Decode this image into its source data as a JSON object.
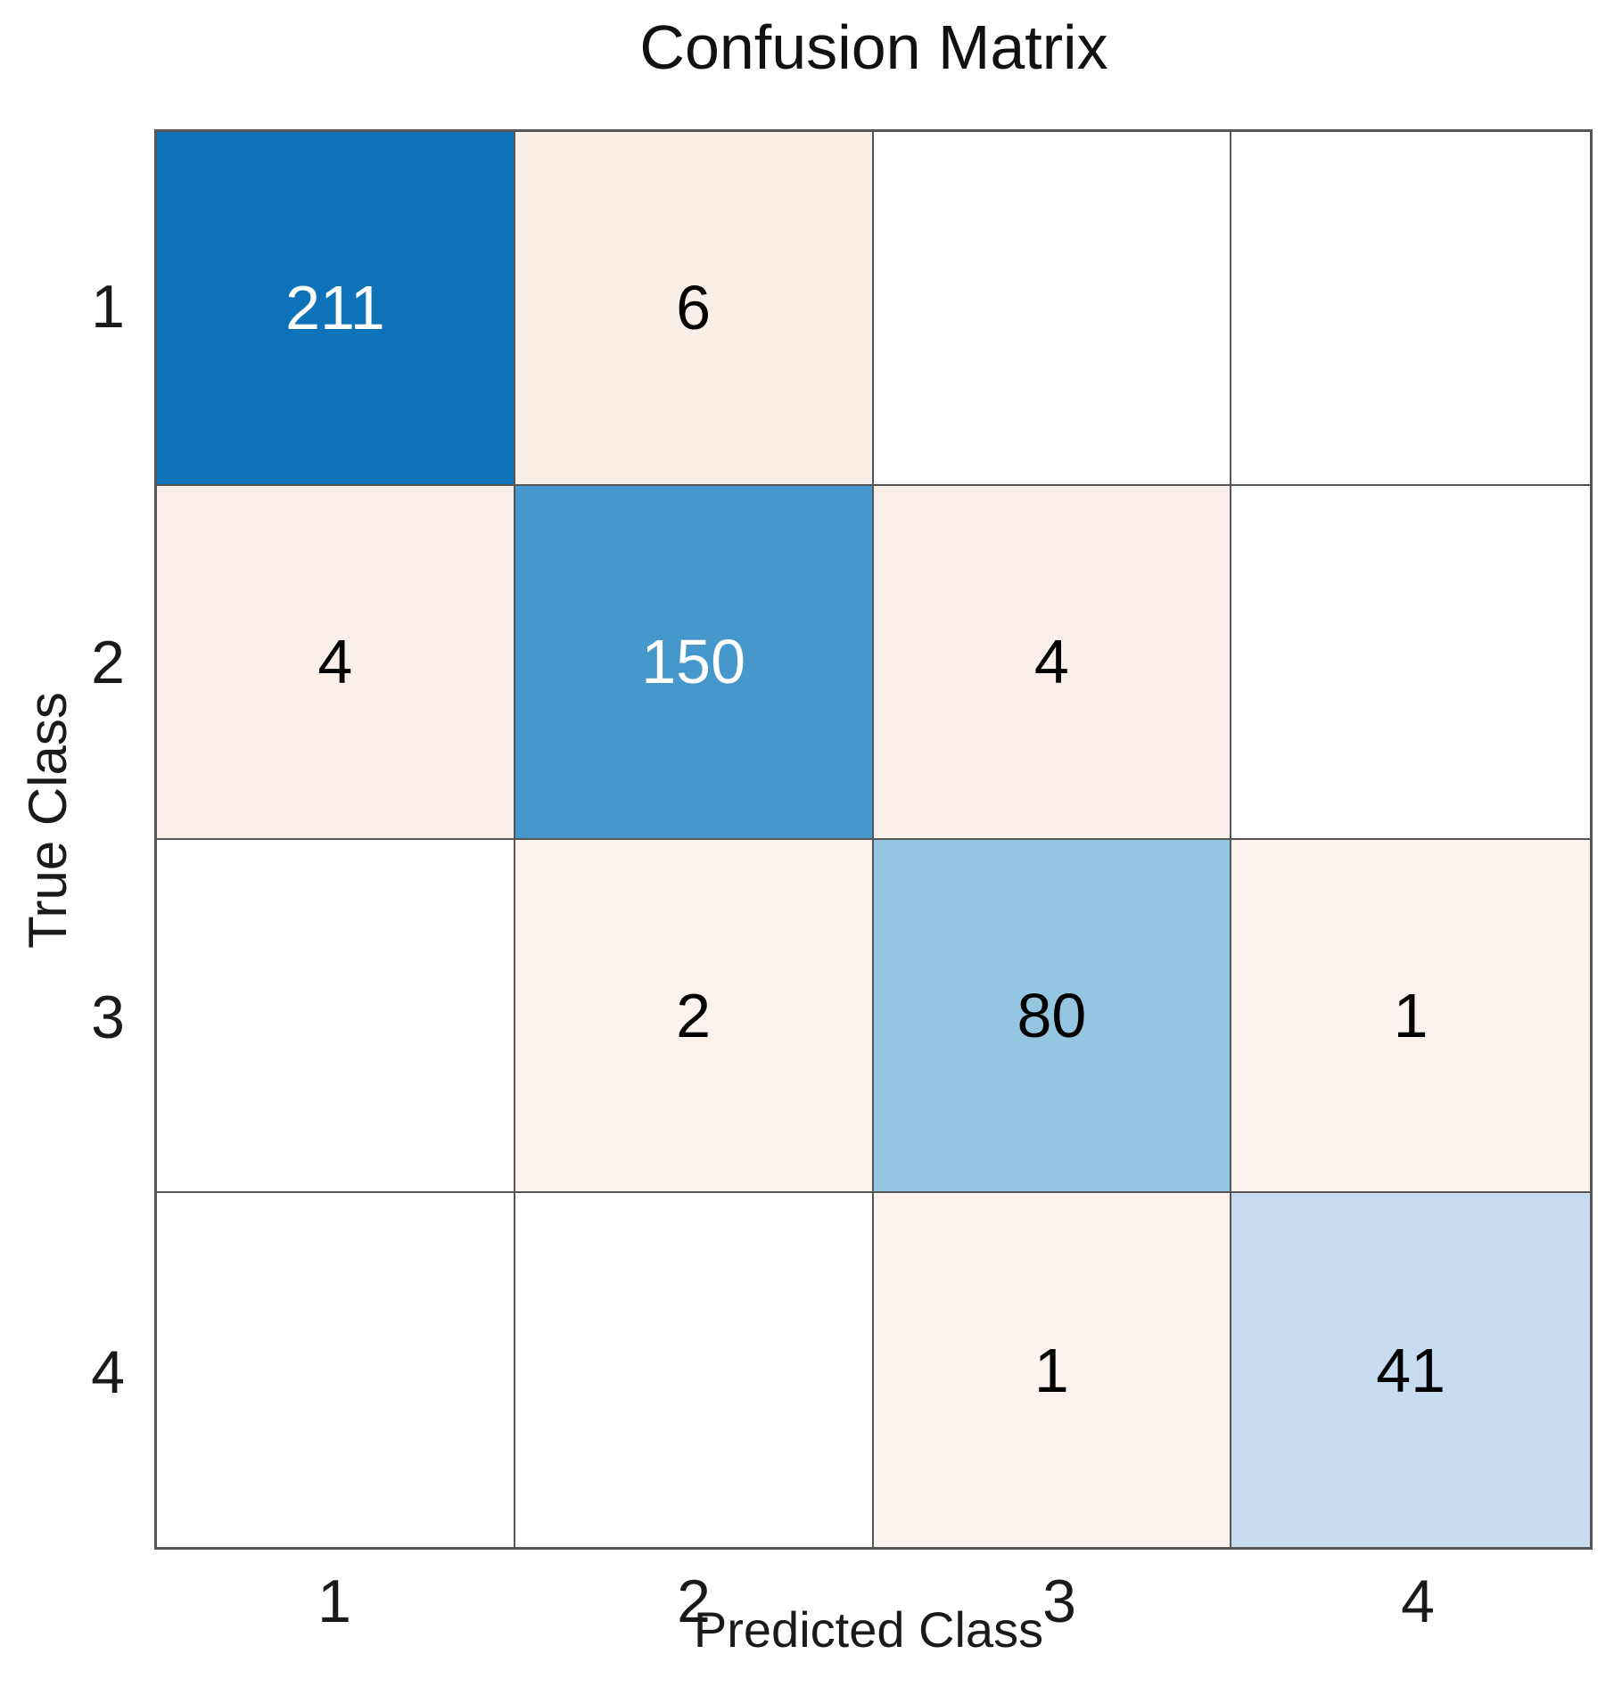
{
  "chart_data": {
    "type": "heatmap",
    "title": "Confusion Matrix",
    "xlabel": "Predicted Class",
    "ylabel": "True Class",
    "x_tick_labels": [
      "1",
      "2",
      "3",
      "4"
    ],
    "y_tick_labels": [
      "1",
      "2",
      "3",
      "4"
    ],
    "matrix": [
      [
        211,
        6,
        null,
        null
      ],
      [
        4,
        150,
        4,
        null
      ],
      [
        null,
        2,
        80,
        1
      ],
      [
        null,
        null,
        1,
        41
      ]
    ],
    "legend_position": "none",
    "grid": true,
    "colors": {
      "diagonal_211": "#0e72b8",
      "diagonal_150": "#4697cb",
      "diagonal_80": "#95c6e1",
      "diagonal_41": "#c7dcf0",
      "offdiagonal_tint": "#fbf1ea",
      "empty_cell": "#ffffff",
      "gridline": "#565656",
      "text_dark": "#000000",
      "text_light": "#ffffff"
    }
  },
  "cells": [
    {
      "row": 1,
      "col": 1,
      "label": "211",
      "bg": "#0e72b8",
      "fg": "#ffffff"
    },
    {
      "row": 1,
      "col": 2,
      "label": "6",
      "bg": "#faefe7",
      "fg": "#000000"
    },
    {
      "row": 1,
      "col": 3,
      "label": "",
      "bg": "#ffffff",
      "fg": "#000000"
    },
    {
      "row": 1,
      "col": 4,
      "label": "",
      "bg": "#ffffff",
      "fg": "#000000"
    },
    {
      "row": 2,
      "col": 1,
      "label": "4",
      "bg": "#fbf0e9",
      "fg": "#000000"
    },
    {
      "row": 2,
      "col": 2,
      "label": "150",
      "bg": "#4697cb",
      "fg": "#ffffff"
    },
    {
      "row": 2,
      "col": 3,
      "label": "4",
      "bg": "#fbf0e9",
      "fg": "#000000"
    },
    {
      "row": 2,
      "col": 4,
      "label": "",
      "bg": "#ffffff",
      "fg": "#000000"
    },
    {
      "row": 3,
      "col": 1,
      "label": "",
      "bg": "#ffffff",
      "fg": "#000000"
    },
    {
      "row": 3,
      "col": 2,
      "label": "2",
      "bg": "#fcf2ec",
      "fg": "#000000"
    },
    {
      "row": 3,
      "col": 3,
      "label": "80",
      "bg": "#95c6e1",
      "fg": "#000000"
    },
    {
      "row": 3,
      "col": 4,
      "label": "1",
      "bg": "#fdf3ee",
      "fg": "#000000"
    },
    {
      "row": 4,
      "col": 1,
      "label": "",
      "bg": "#ffffff",
      "fg": "#000000"
    },
    {
      "row": 4,
      "col": 2,
      "label": "",
      "bg": "#ffffff",
      "fg": "#000000"
    },
    {
      "row": 4,
      "col": 3,
      "label": "1",
      "bg": "#fdf3ee",
      "fg": "#000000"
    },
    {
      "row": 4,
      "col": 4,
      "label": "41",
      "bg": "#c7dcf0",
      "fg": "#000000"
    }
  ]
}
